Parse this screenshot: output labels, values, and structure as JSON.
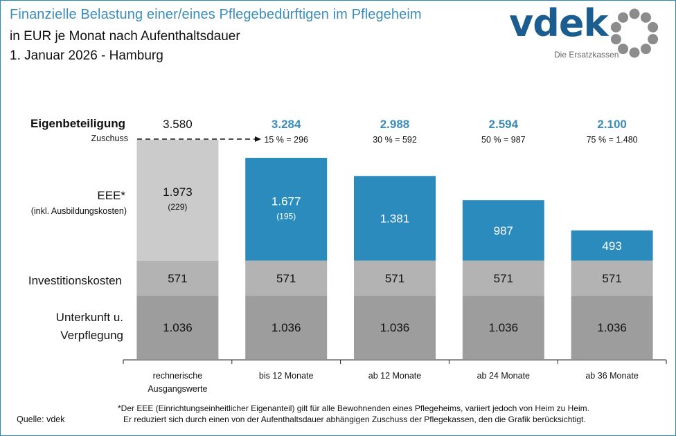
{
  "header": {
    "title": "Finanzielle Belastung einer/eines Pflegebedürftigen im Pflegeheim",
    "subtitle_line1": "in EUR je Monat nach Aufenthaltsdauer",
    "subtitle_line2": "1. Januar 2026 - Hamburg"
  },
  "logo": {
    "wordmark": "vdek",
    "tagline": "Die Ersatzkassen",
    "icon": "dotted-ring-icon"
  },
  "colors": {
    "accent": "#3a8dba",
    "eee_blue": "#2b8bbd",
    "eee_baseline_gray": "#cbcbcb",
    "investition_gray": "#b3b3b3",
    "unterkunft_gray": "#9d9d9d",
    "border": "#2b87b4",
    "logo_blue": "#1b5d8e",
    "logo_ring_gray": "#8c8c8c"
  },
  "chart_data": {
    "type": "bar",
    "stacked": true,
    "title": "Finanzielle Belastung einer/eines Pflegebedürftigen im Pflegeheim",
    "subtitle": "in EUR je Monat nach Aufenthaltsdauer – 1. Januar 2026 - Hamburg",
    "xlabel": "",
    "ylabel": "",
    "unit": "EUR",
    "categories": [
      "rechnerische Ausgangswerte",
      "bis 12 Monate",
      "ab 12 Monate",
      "ab 24 Monate",
      "ab 36 Monate"
    ],
    "category_lines": [
      [
        "rechnerische",
        "Ausgangswerte"
      ],
      [
        "bis 12 Monate"
      ],
      [
        "ab 12 Monate"
      ],
      [
        "ab 24 Monate"
      ],
      [
        "ab 36 Monate"
      ]
    ],
    "series": [
      {
        "name": "Unterkunft u. Verpflegung",
        "label_lines": [
          "Unterkunft u.",
          "Verpflegung"
        ],
        "values": [
          1036,
          1036,
          1036,
          1036,
          1036
        ],
        "labels": [
          "1.036",
          "1.036",
          "1.036",
          "1.036",
          "1.036"
        ]
      },
      {
        "name": "Investitionskosten",
        "label_lines": [
          "Investitionskosten"
        ],
        "values": [
          571,
          571,
          571,
          571,
          571
        ],
        "labels": [
          "571",
          "571",
          "571",
          "571",
          "571"
        ]
      },
      {
        "name": "EEE* (inkl. Ausbildungskosten)",
        "label_lines": [
          "EEE*",
          "(inkl. Ausbildungskosten)"
        ],
        "values": [
          1973,
          1677,
          1381,
          987,
          493
        ],
        "labels": [
          "1.973",
          "1.677",
          "1.381",
          "987",
          "493"
        ],
        "sublabels": [
          "(229)",
          "(195)",
          "",
          "",
          ""
        ]
      }
    ],
    "totals_label": "Eigenbeteiligung",
    "totals": [
      3580,
      3284,
      2988,
      2594,
      2100
    ],
    "totals_text": [
      "3.580",
      "3.284",
      "2.988",
      "2.594",
      "2.100"
    ],
    "zuschuss_label": "Zuschuss",
    "zuschuss_text": [
      "",
      "15 % = 296",
      "30 % = 592",
      "50 % = 987",
      "75 % = 1.480"
    ],
    "zuschuss": [
      0,
      296,
      592,
      987,
      1480
    ],
    "zuschuss_percent": [
      0,
      15,
      30,
      50,
      75
    ],
    "ylim": [
      0,
      3700
    ],
    "grid": false,
    "legend": "left-row-labels"
  },
  "footer": {
    "source": "Quelle: vdek",
    "footnote_line1": "*Der EEE (Einrichtungseinheitlicher Eigenanteil) gilt für alle Bewohnenden eines Pflegeheims, variiert jedoch von Heim zu Heim.",
    "footnote_line2": "Er reduziert sich durch einen von der Aufenthaltsdauer abhängigen Zuschuss der Pflegekassen, den die Grafik berücksichtigt."
  }
}
